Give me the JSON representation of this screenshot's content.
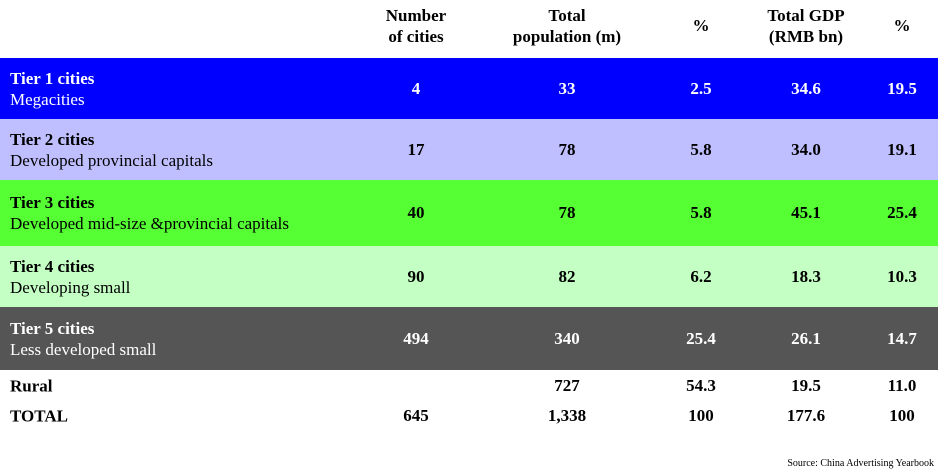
{
  "headers": [
    "Number\nof cities",
    "Total\npopulation (m)",
    "%",
    "Total GDP\n(RMB bn)",
    "%"
  ],
  "header_lines": [
    [
      "Number",
      "of cities"
    ],
    [
      "Total",
      "population (m)"
    ],
    [
      "%"
    ],
    [
      "Total GDP",
      "(RMB bn)"
    ],
    [
      "%"
    ]
  ],
  "rows": [
    {
      "title": "Tier 1 cities",
      "subtitle": "Megacities",
      "values": [
        "4",
        "33",
        "2.5",
        "34.6",
        "19.5"
      ],
      "bg": "#0000ff",
      "fg": "#ffffff"
    },
    {
      "title": "Tier 2 cities",
      "subtitle": "Developed provincial capitals",
      "values": [
        "17",
        "78",
        "5.8",
        "34.0",
        "19.1"
      ],
      "bg": "#bfbfff",
      "fg": "#000000"
    },
    {
      "title": "Tier 3 cities",
      "subtitle": "Developed mid-size &provincial capitals",
      "values": [
        "40",
        "78",
        "5.8",
        "45.1",
        "25.4"
      ],
      "bg": "#55ff33",
      "fg": "#000000"
    },
    {
      "title": "Tier 4 cities",
      "subtitle": "Developing small",
      "values": [
        "90",
        "82",
        "6.2",
        "18.3",
        "10.3"
      ],
      "bg": "#c4ffc4",
      "fg": "#000000"
    },
    {
      "title": "Tier 5 cities",
      "subtitle": "Less developed small",
      "values": [
        "494",
        "340",
        "25.4",
        "26.1",
        "14.7"
      ],
      "bg": "#555555",
      "fg": "#ffffff"
    },
    {
      "title": "Rural",
      "values": [
        "",
        "727",
        "54.3",
        "19.5",
        "11.0"
      ]
    },
    {
      "title": "TOTAL",
      "values": [
        "645",
        "1,338",
        "100",
        "177.6",
        "100"
      ]
    }
  ],
  "source": "Source: China Advertising Yearbook"
}
